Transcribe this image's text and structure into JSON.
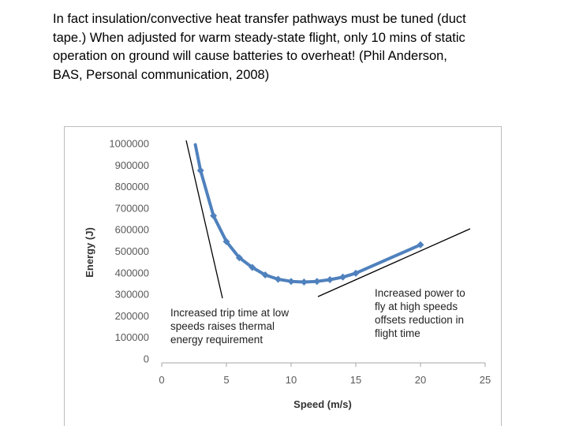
{
  "caption": {
    "line1": "In fact insulation/convective heat transfer pathways  must be tuned  (duct",
    "line2": "tape.)  When adjusted for warm steady-state flight, only 10 mins of static",
    "line3": "operation on ground will cause batteries to overheat!  (Phil Anderson,",
    "line4": "BAS, Personal communication, 2008)"
  },
  "chart_data": {
    "type": "line",
    "title": "",
    "xlabel": "Speed (m/s)",
    "ylabel": "Energy (J)",
    "xlim": [
      0,
      25
    ],
    "ylim": [
      0,
      1000000
    ],
    "x_ticks": [
      "0",
      "5",
      "10",
      "15",
      "20",
      "25"
    ],
    "y_ticks": [
      "0",
      "100000",
      "200000",
      "300000",
      "400000",
      "500000",
      "600000",
      "700000",
      "800000",
      "900000",
      "1000000"
    ],
    "grid": false,
    "legend": "none",
    "series": [
      {
        "color": "#4f81bd",
        "x": [
          2.6,
          3,
          4,
          5,
          6,
          7,
          8,
          9,
          10,
          11,
          12,
          13,
          14,
          15,
          20
        ],
        "y": [
          995000,
          875000,
          665000,
          545000,
          470000,
          425000,
          390000,
          370000,
          360000,
          357000,
          360000,
          368000,
          380000,
          398000,
          530000
        ],
        "markers": [
          false,
          true,
          true,
          true,
          true,
          true,
          true,
          true,
          true,
          true,
          true,
          true,
          true,
          true,
          true
        ]
      }
    ],
    "annotations": [
      {
        "id": "low-speed",
        "lines": [
          "Increased trip time at low",
          "speeds raises thermal",
          "energy requirement"
        ]
      },
      {
        "id": "high-speed",
        "lines": [
          "Increased power to",
          "fly at high speeds",
          "offsets reduction in",
          "flight time"
        ]
      }
    ]
  }
}
